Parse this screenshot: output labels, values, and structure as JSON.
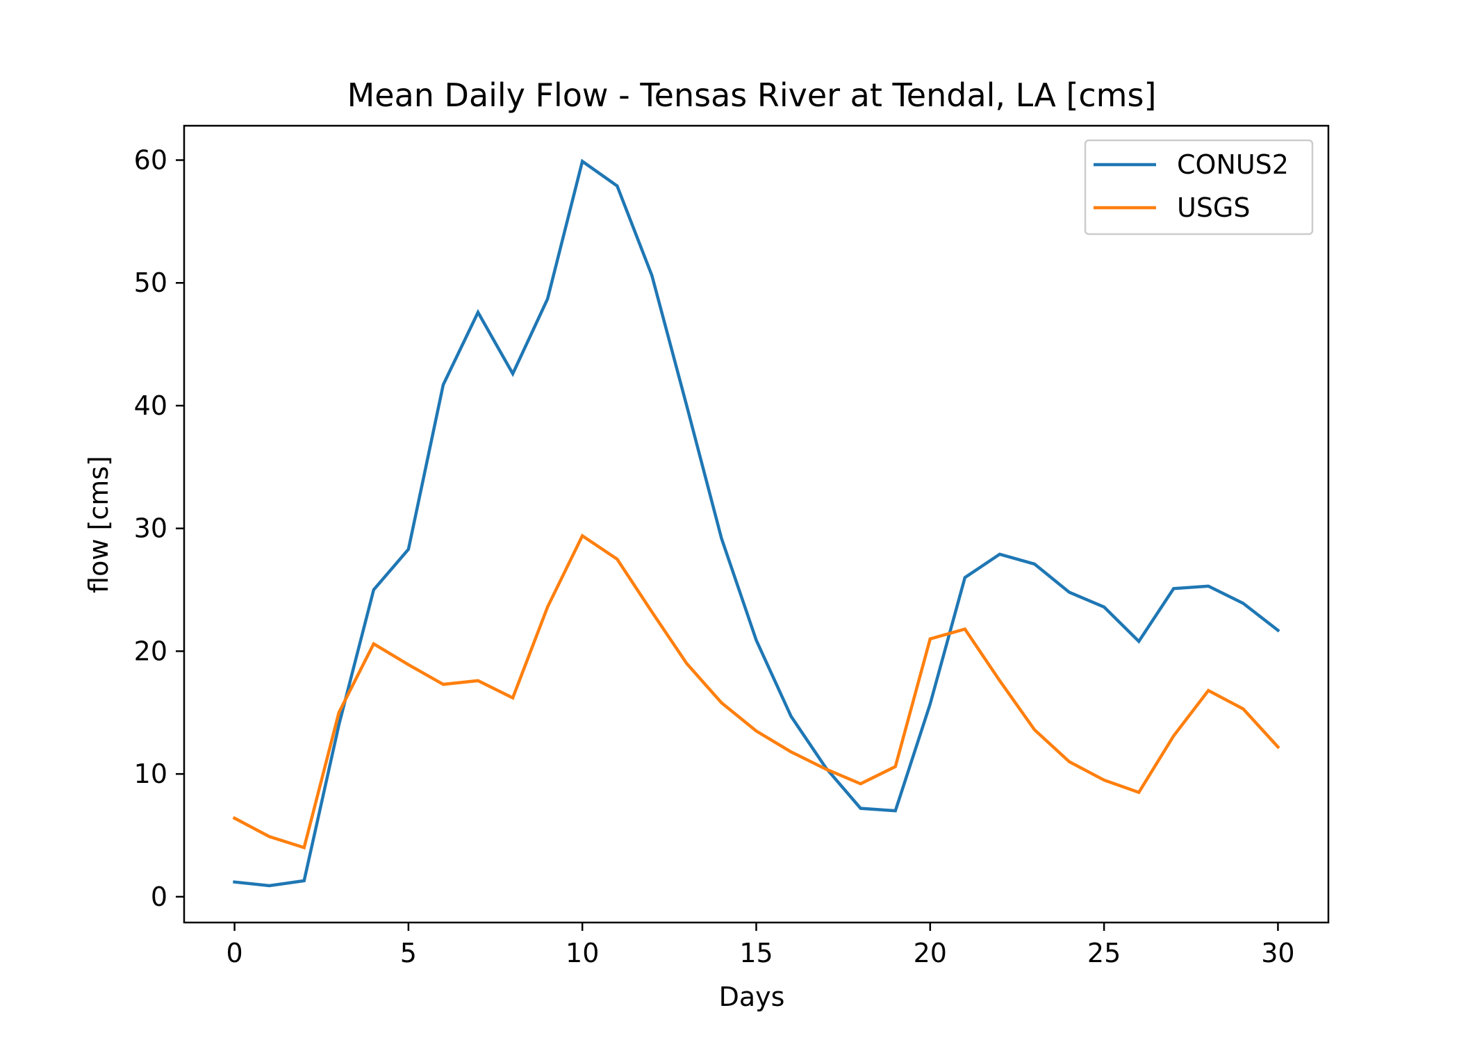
{
  "chart_data": {
    "type": "line",
    "title": "Mean Daily Flow - Tensas River at Tendal, LA [cms]",
    "xlabel": "Days",
    "ylabel": "flow [cms]",
    "xlim": [
      -1.45,
      31.45
    ],
    "ylim": [
      -2.1,
      62.8
    ],
    "xticks": [
      0,
      5,
      10,
      15,
      20,
      25,
      30
    ],
    "yticks": [
      0,
      10,
      20,
      30,
      40,
      50,
      60
    ],
    "grid": false,
    "legend_position": "upper right",
    "x": [
      0,
      1,
      2,
      3,
      4,
      5,
      6,
      7,
      8,
      9,
      10,
      11,
      12,
      13,
      14,
      15,
      16,
      17,
      18,
      19,
      20,
      21,
      22,
      23,
      24,
      25,
      26,
      27,
      28,
      29,
      30
    ],
    "series": [
      {
        "name": "CONUS2",
        "color": "#1f77b4",
        "values": [
          1.2,
          0.9,
          1.3,
          14.0,
          25.0,
          28.3,
          41.7,
          47.6,
          42.6,
          48.7,
          59.9,
          57.9,
          50.6,
          40.0,
          29.2,
          20.9,
          14.7,
          10.5,
          7.2,
          7.0,
          15.7,
          26.0,
          27.9,
          27.1,
          24.8,
          23.6,
          20.8,
          25.1,
          25.3,
          23.9,
          21.7
        ]
      },
      {
        "name": "USGS",
        "color": "#ff7f0e",
        "values": [
          6.4,
          4.9,
          4.0,
          15.0,
          20.6,
          18.9,
          17.3,
          17.6,
          16.2,
          23.6,
          29.4,
          27.5,
          23.2,
          19.0,
          15.8,
          13.5,
          11.8,
          10.4,
          9.2,
          10.6,
          21.0,
          21.8,
          17.6,
          13.6,
          11.0,
          9.5,
          8.5,
          13.1,
          16.8,
          15.3,
          12.2
        ]
      }
    ]
  }
}
